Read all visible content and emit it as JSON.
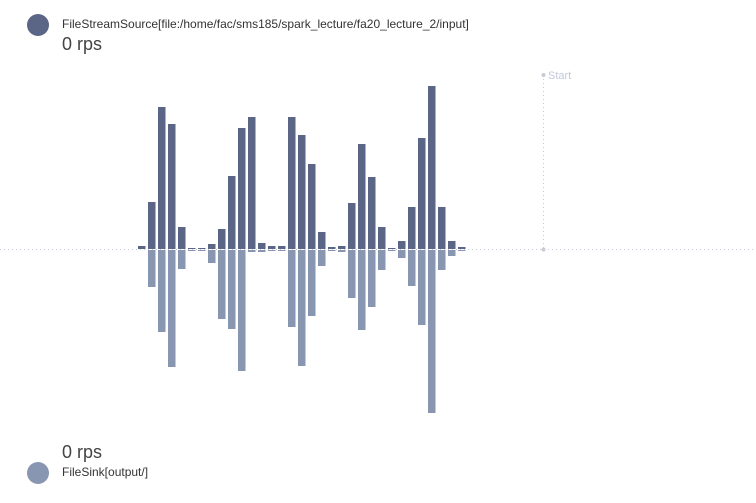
{
  "source": {
    "name": "FileStreamSource[file:/home/fac/sms185/spark_lecture/fa20_lecture_2/input]",
    "rate": "0 rps",
    "color": "#5b6585"
  },
  "sink": {
    "name": "FileSink[output/]",
    "rate": "0 rps",
    "color": "#8896b2"
  },
  "chart_data": {
    "type": "bar",
    "marker_label": "Start",
    "series": [
      {
        "role": "input",
        "color": "#5b6585",
        "values": [
          3,
          47,
          142,
          125,
          22,
          1,
          1,
          5,
          20,
          73,
          121,
          132,
          6,
          3,
          3,
          132,
          114,
          85,
          17,
          2,
          3,
          46,
          105,
          72,
          22,
          1,
          8,
          42,
          111,
          163,
          42,
          8,
          2
        ]
      },
      {
        "role": "output",
        "color": "#8896b2",
        "values": [
          0,
          37,
          82,
          117,
          19,
          1,
          1,
          13,
          69,
          79,
          121,
          2,
          2,
          1,
          1,
          77,
          116,
          66,
          16,
          1,
          2,
          48,
          80,
          57,
          20,
          1,
          8,
          36,
          75,
          163,
          20,
          6,
          1
        ]
      }
    ]
  }
}
